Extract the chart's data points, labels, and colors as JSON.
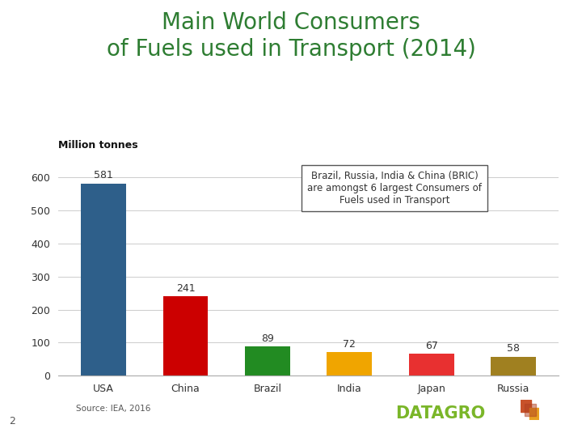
{
  "title_line1": "Main World Consumers",
  "title_line2": "of Fuels used in Transport (2014)",
  "title_color": "#2e7d32",
  "ylabel": "Million tonnes",
  "categories": [
    "USA",
    "China",
    "Brazil",
    "India",
    "Japan",
    "Russia"
  ],
  "values": [
    581,
    241,
    89,
    72,
    67,
    58
  ],
  "bar_colors": [
    "#2e5f8a",
    "#cc0000",
    "#228B22",
    "#f0a500",
    "#e83030",
    "#a08020"
  ],
  "ylim": [
    0,
    660
  ],
  "yticks": [
    0,
    100,
    200,
    300,
    400,
    500,
    600
  ],
  "annotation_text": "Brazil, Russia, India & China (BRIC)\nare amongst 6 largest Consumers of\nFuels used in Transport",
  "source_text": "Source: IEA, 2016",
  "datagro_text": "DATAGRO",
  "page_number": "2",
  "background_color": "#ffffff",
  "grid_color": "#cccccc",
  "title_fontsize": 20,
  "bar_label_fontsize": 9,
  "tick_label_fontsize": 9,
  "ylabel_fontsize": 9
}
